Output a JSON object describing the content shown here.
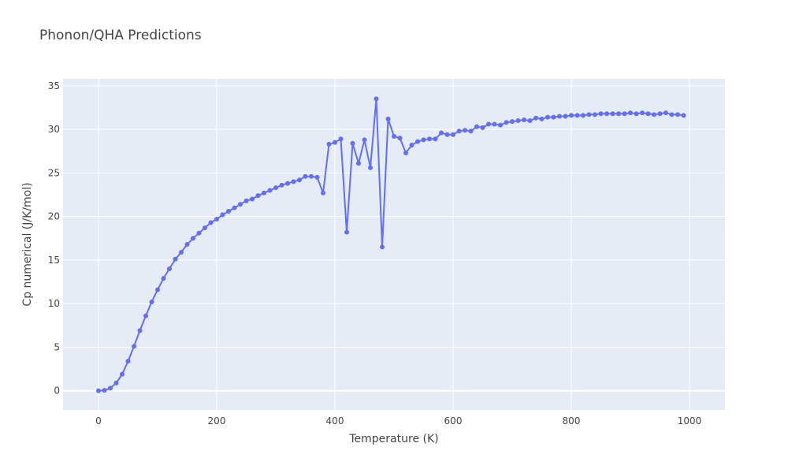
{
  "chart_data": {
    "type": "line",
    "title": "Phonon/QHA Predictions",
    "xlabel": "Temperature (K)",
    "ylabel": "Cp numerical (J/K/mol)",
    "xlim": [
      -60,
      1060
    ],
    "ylim": [
      -2.2,
      35.8
    ],
    "xticks": [
      0,
      200,
      400,
      600,
      800,
      1000
    ],
    "yticks": [
      0,
      5,
      10,
      15,
      20,
      25,
      30,
      35
    ],
    "grid": true,
    "legend": "none",
    "colors": {
      "plot_bg": "#e5ecf6",
      "grid": "#ffffff",
      "series": "#636efa"
    },
    "series": [
      {
        "x": [
          0,
          10,
          20,
          30,
          40,
          50,
          60,
          70,
          80,
          90,
          100,
          110,
          120,
          130,
          140,
          150,
          160,
          170,
          180,
          190,
          200,
          210,
          220,
          230,
          240,
          250,
          260,
          270,
          280,
          290,
          300,
          310,
          320,
          330,
          340,
          350,
          360,
          370,
          380,
          390,
          400,
          410,
          420,
          430,
          440,
          450,
          460,
          470,
          480,
          490,
          500,
          510,
          520,
          530,
          540,
          550,
          560,
          570,
          580,
          590,
          600,
          610,
          620,
          630,
          640,
          650,
          660,
          670,
          680,
          690,
          700,
          710,
          720,
          730,
          740,
          750,
          760,
          770,
          780,
          790,
          800,
          810,
          820,
          830,
          840,
          850,
          860,
          870,
          880,
          890,
          900,
          910,
          920,
          930,
          940,
          950,
          960,
          970,
          980,
          990
        ],
        "y": [
          0.0,
          0.05,
          0.3,
          0.9,
          1.9,
          3.4,
          5.1,
          6.9,
          8.6,
          10.2,
          11.6,
          12.9,
          14.0,
          15.1,
          15.9,
          16.8,
          17.5,
          18.1,
          18.7,
          19.3,
          19.7,
          20.2,
          20.6,
          21.0,
          21.4,
          21.8,
          22.0,
          22.4,
          22.7,
          23.0,
          23.3,
          23.6,
          23.8,
          24.0,
          24.2,
          24.6,
          24.6,
          24.5,
          22.7,
          28.3,
          28.5,
          28.9,
          18.2,
          28.4,
          26.1,
          28.8,
          25.6,
          33.5,
          16.5,
          31.2,
          29.2,
          29.0,
          27.3,
          28.2,
          28.6,
          28.8,
          28.9,
          28.9,
          29.6,
          29.4,
          29.4,
          29.8,
          29.9,
          29.8,
          30.3,
          30.2,
          30.6,
          30.6,
          30.5,
          30.8,
          30.9,
          31.0,
          31.1,
          31.0,
          31.3,
          31.2,
          31.4,
          31.4,
          31.5,
          31.5,
          31.6,
          31.6,
          31.6,
          31.7,
          31.7,
          31.8,
          31.8,
          31.8,
          31.8,
          31.8,
          31.9,
          31.8,
          31.9,
          31.8,
          31.7,
          31.8,
          31.9,
          31.7,
          31.7,
          31.6
        ]
      }
    ]
  }
}
